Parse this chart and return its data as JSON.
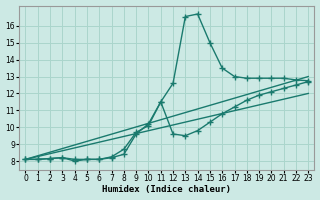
{
  "xlabel": "Humidex (Indice chaleur)",
  "background_color": "#cce9e4",
  "grid_color": "#aad5cc",
  "line_color": "#1a7a6e",
  "xlim": [
    -0.5,
    23.5
  ],
  "ylim": [
    7.5,
    17.2
  ],
  "yticks": [
    8,
    9,
    10,
    11,
    12,
    13,
    14,
    15,
    16
  ],
  "xticks": [
    0,
    1,
    2,
    3,
    4,
    5,
    6,
    7,
    8,
    9,
    10,
    11,
    12,
    13,
    14,
    15,
    16,
    17,
    18,
    19,
    20,
    21,
    22,
    23
  ],
  "lines": [
    {
      "x": [
        0,
        1,
        2,
        3,
        4,
        5,
        6,
        7,
        8,
        9,
        10,
        11,
        12,
        13,
        14,
        15,
        16,
        17,
        18,
        19,
        20,
        21,
        22,
        23
      ],
      "y": [
        8.1,
        8.1,
        8.15,
        8.2,
        8.0,
        8.1,
        8.1,
        8.2,
        8.4,
        9.6,
        10.2,
        11.5,
        12.6,
        16.55,
        16.7,
        15.0,
        13.5,
        13.0,
        12.9,
        12.9,
        12.9,
        12.9,
        12.8,
        12.75
      ],
      "marker": "+"
    },
    {
      "x": [
        0,
        1,
        2,
        3,
        4,
        5,
        6,
        7,
        8,
        9,
        10,
        11,
        12,
        13,
        14,
        15,
        16,
        17,
        18,
        19,
        20,
        21,
        22,
        23
      ],
      "y": [
        8.1,
        8.1,
        8.15,
        8.2,
        8.1,
        8.1,
        8.1,
        8.25,
        8.7,
        9.7,
        10.1,
        11.5,
        9.6,
        9.5,
        9.8,
        10.3,
        10.8,
        11.2,
        11.6,
        11.9,
        12.1,
        12.3,
        12.5,
        12.7
      ],
      "marker": "+"
    },
    {
      "comment": "straight line 1 from (0,8.1) to (23, 13.0)",
      "x": [
        0,
        23
      ],
      "y": [
        8.1,
        13.0
      ],
      "marker": null
    },
    {
      "comment": "straight line 2 from (0,8.1) to (23, 12.0)",
      "x": [
        0,
        23
      ],
      "y": [
        8.1,
        12.0
      ],
      "marker": null
    }
  ]
}
